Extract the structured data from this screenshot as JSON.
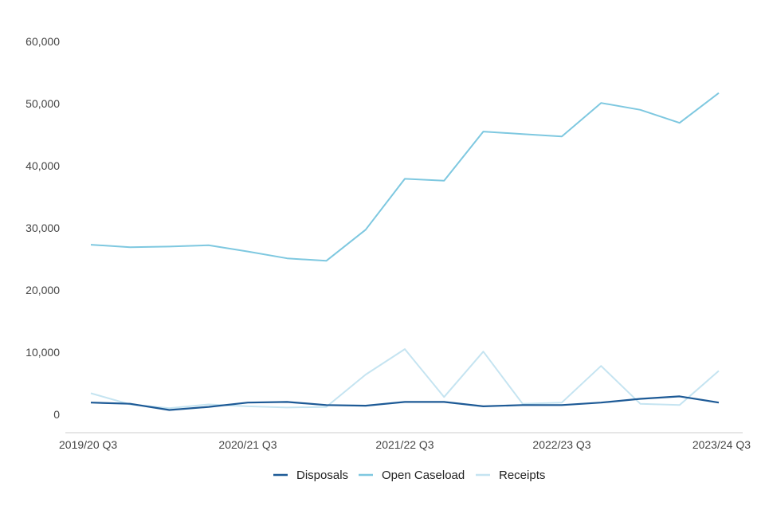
{
  "chart_data": {
    "type": "line",
    "title": "",
    "xlabel": "",
    "ylabel": "",
    "x": [
      "2019/20 Q3",
      "2019/20 Q4",
      "2020/21 Q1",
      "2020/21 Q2",
      "2020/21 Q3",
      "2020/21 Q4",
      "2021/22 Q1",
      "2021/22 Q2",
      "2021/22 Q3",
      "2021/22 Q4",
      "2022/23 Q1",
      "2022/23 Q2",
      "2022/23 Q3",
      "2022/23 Q4",
      "2023/24 Q1",
      "2023/24 Q2",
      "2023/24 Q3"
    ],
    "x_tick_labels": [
      "2019/20 Q3",
      "2020/21 Q3",
      "2021/22 Q3",
      "2022/23 Q3",
      "2023/24 Q3"
    ],
    "ylim": [
      0,
      60000
    ],
    "y_ticks": [
      0,
      10000,
      20000,
      30000,
      40000,
      50000,
      60000
    ],
    "y_tick_labels": [
      "0",
      "10,000",
      "20,000",
      "30,000",
      "40,000",
      "50,000",
      "60,000"
    ],
    "grid": false,
    "legend_position": "bottom",
    "series": [
      {
        "name": "Disposals",
        "color": "#1d5a96",
        "values": [
          1900,
          1700,
          700,
          1200,
          1900,
          2000,
          1500,
          1400,
          2000,
          2000,
          1300,
          1500,
          1500,
          1900,
          2500,
          2900,
          1900
        ]
      },
      {
        "name": "Open Caseload",
        "color": "#7ec8e0",
        "values": [
          27300,
          26900,
          27000,
          27200,
          26200,
          25100,
          24700,
          29700,
          37900,
          37600,
          45500,
          45100,
          44700,
          50100,
          49000,
          46900,
          51700
        ]
      },
      {
        "name": "Receipts",
        "color": "#c5e4f1",
        "values": [
          3400,
          1600,
          1000,
          1600,
          1300,
          1100,
          1200,
          6400,
          10500,
          2800,
          10100,
          1700,
          1900,
          7800,
          1700,
          1500,
          7000
        ]
      }
    ]
  }
}
